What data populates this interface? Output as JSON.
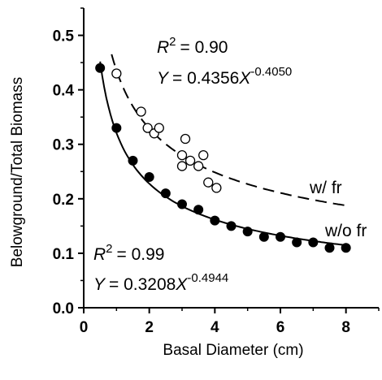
{
  "chart_data": {
    "type": "scatter",
    "xlabel": "Basal Diameter (cm)",
    "ylabel": "Belowground/Total Biomass",
    "xlim": [
      0,
      9
    ],
    "ylim": [
      0,
      0.55
    ],
    "x_ticks": [
      "0",
      "2",
      "4",
      "6",
      "8"
    ],
    "x_tick_values": [
      0,
      2,
      4,
      6,
      8
    ],
    "y_ticks": [
      "0.0",
      "0.1",
      "0.2",
      "0.3",
      "0.4",
      "0.5"
    ],
    "y_tick_values": [
      0,
      0.1,
      0.2,
      0.3,
      0.4,
      0.5
    ],
    "grid": false,
    "series": [
      {
        "name": "w/ fr",
        "marker": "open-circle",
        "line_style": "dashed",
        "points": [
          {
            "x": 1.0,
            "y": 0.43
          },
          {
            "x": 1.75,
            "y": 0.36
          },
          {
            "x": 1.95,
            "y": 0.33
          },
          {
            "x": 2.15,
            "y": 0.32
          },
          {
            "x": 2.3,
            "y": 0.33
          },
          {
            "x": 3.0,
            "y": 0.28
          },
          {
            "x": 3.0,
            "y": 0.26
          },
          {
            "x": 3.1,
            "y": 0.31
          },
          {
            "x": 3.25,
            "y": 0.27
          },
          {
            "x": 3.5,
            "y": 0.26
          },
          {
            "x": 3.65,
            "y": 0.28
          },
          {
            "x": 3.8,
            "y": 0.23
          },
          {
            "x": 4.05,
            "y": 0.22
          }
        ],
        "fit": {
          "a": 0.4356,
          "b": -0.405,
          "x_range": [
            0.85,
            8.0
          ]
        },
        "r2_label": "= 0.90",
        "equation_label": "= 0.4356",
        "exponent_label": "-0.4050"
      },
      {
        "name": "w/o fr",
        "marker": "filled-circle",
        "line_style": "solid",
        "points": [
          {
            "x": 0.5,
            "y": 0.44
          },
          {
            "x": 1.0,
            "y": 0.33
          },
          {
            "x": 1.5,
            "y": 0.27
          },
          {
            "x": 2.0,
            "y": 0.24
          },
          {
            "x": 2.5,
            "y": 0.21
          },
          {
            "x": 3.0,
            "y": 0.19
          },
          {
            "x": 3.5,
            "y": 0.18
          },
          {
            "x": 4.0,
            "y": 0.16
          },
          {
            "x": 4.5,
            "y": 0.15
          },
          {
            "x": 5.0,
            "y": 0.14
          },
          {
            "x": 5.5,
            "y": 0.13
          },
          {
            "x": 6.0,
            "y": 0.13
          },
          {
            "x": 6.5,
            "y": 0.12
          },
          {
            "x": 7.0,
            "y": 0.12
          },
          {
            "x": 7.5,
            "y": 0.11
          },
          {
            "x": 8.0,
            "y": 0.11
          }
        ],
        "fit": {
          "a": 0.3208,
          "b": -0.4944,
          "x_range": [
            0.5,
            8.0
          ]
        },
        "r2_label": "= 0.99",
        "equation_label": "= 0.3208",
        "exponent_label": "-0.4944"
      }
    ],
    "annotation_r2_symbol": "R",
    "annotation_r2_superscript": "2",
    "annotation_y_symbol": "Y",
    "annotation_x_symbol": "X"
  }
}
